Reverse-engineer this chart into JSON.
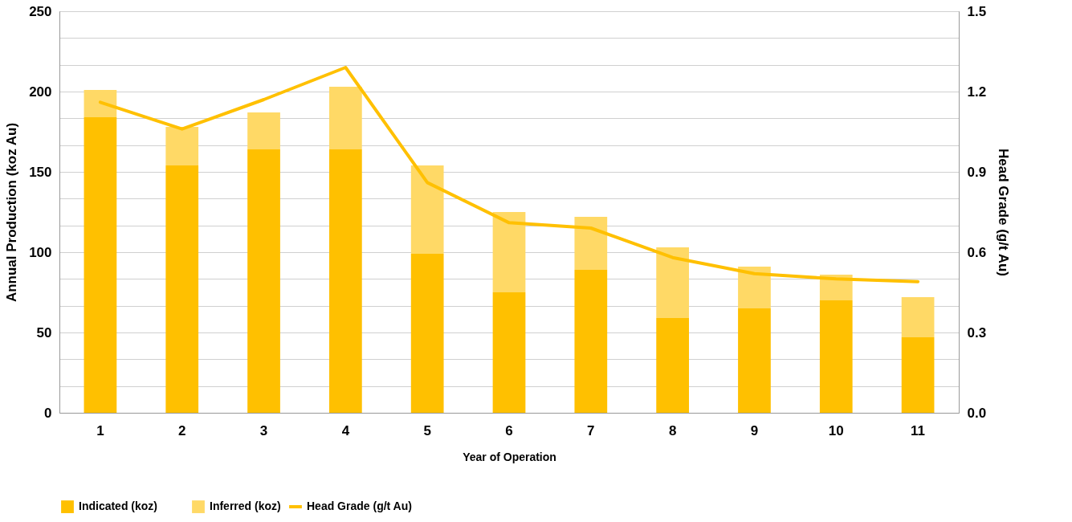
{
  "chart_data": {
    "type": "bar",
    "stacked": true,
    "categories": [
      "1",
      "2",
      "3",
      "4",
      "5",
      "6",
      "7",
      "8",
      "9",
      "10",
      "11"
    ],
    "xlabel": "Year of Operation",
    "ylabel": "Annual Production (koz Au)",
    "y2label": "Head Grade (g/t Au)",
    "series": [
      {
        "name": "Indicated (koz)",
        "color": "#ffc000",
        "values": [
          184,
          154,
          164,
          164,
          99,
          75,
          89,
          59,
          65,
          70,
          47
        ]
      },
      {
        "name": "Inferred (koz)",
        "color": "#ffd966",
        "values": [
          17,
          24,
          23,
          39,
          55,
          50,
          33,
          44,
          26,
          16,
          25
        ]
      },
      {
        "name": "Head Grade (g/t Au)",
        "type": "line",
        "axis": "y2",
        "color": "#ffc000",
        "values": [
          1.16,
          1.06,
          1.17,
          1.29,
          0.86,
          0.71,
          0.69,
          0.58,
          0.52,
          0.5,
          0.49
        ]
      }
    ],
    "ylim": [
      0,
      250
    ],
    "yticks": [
      0,
      50,
      100,
      150,
      200,
      250
    ],
    "y2lim": [
      0,
      1.5
    ],
    "y2ticks": [
      {
        "value": 0,
        "label": "0.0"
      },
      {
        "value": 0.1,
        "label": null
      },
      {
        "value": 0.2,
        "label": null
      },
      0.3,
      {
        "value": 0.4,
        "label": null
      },
      {
        "value": 0.5,
        "label": null
      },
      0.6,
      {
        "value": 0.7,
        "label": null
      },
      {
        "value": 0.8,
        "label": null
      },
      0.9,
      {
        "value": 1.0,
        "label": null
      },
      {
        "value": 1.1,
        "label": null
      },
      1.2,
      {
        "value": 1.3,
        "label": null
      },
      {
        "value": 1.4,
        "label": null
      },
      1.5
    ],
    "grid": true,
    "legend": "bottom"
  }
}
